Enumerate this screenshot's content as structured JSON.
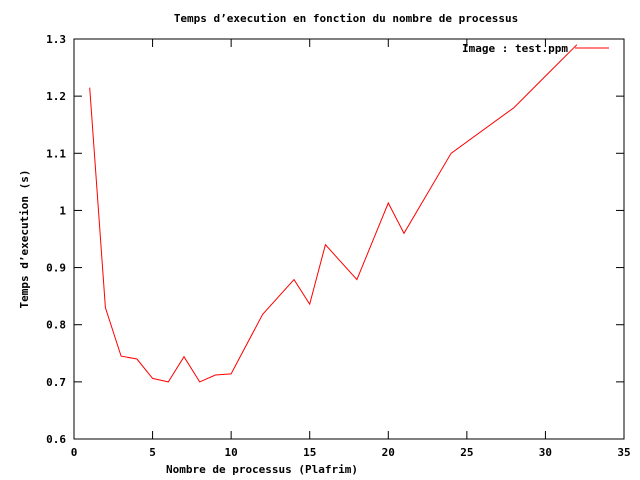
{
  "chart_data": {
    "type": "line",
    "title": "Temps d’execution en fonction du nombre de processus",
    "xlabel": "Nombre de processus (Plafrim)",
    "ylabel": "Temps d’execution (s)",
    "xlim": [
      0,
      35
    ],
    "ylim": [
      0.6,
      1.3
    ],
    "x_ticks": [
      "0",
      "5",
      "10",
      "15",
      "20",
      "25",
      "30",
      "35"
    ],
    "y_ticks": [
      "0.6",
      "0.7",
      "0.8",
      "0.9",
      "1",
      "1.1",
      "1.2",
      "1.3"
    ],
    "grid": false,
    "legend_position": "top-right",
    "series": [
      {
        "name": "Image : test.ppm",
        "color": "#ff0000",
        "x": [
          1,
          2,
          3,
          4,
          5,
          6,
          7,
          8,
          9,
          10,
          12,
          14,
          15,
          16,
          18,
          20,
          21,
          24,
          28,
          30,
          32
        ],
        "y": [
          1.215,
          0.83,
          0.745,
          0.74,
          0.706,
          0.7,
          0.744,
          0.7,
          0.712,
          0.714,
          0.818,
          0.879,
          0.836,
          0.94,
          0.879,
          1.013,
          0.96,
          1.1,
          1.18,
          1.235,
          1.29
        ]
      }
    ]
  }
}
